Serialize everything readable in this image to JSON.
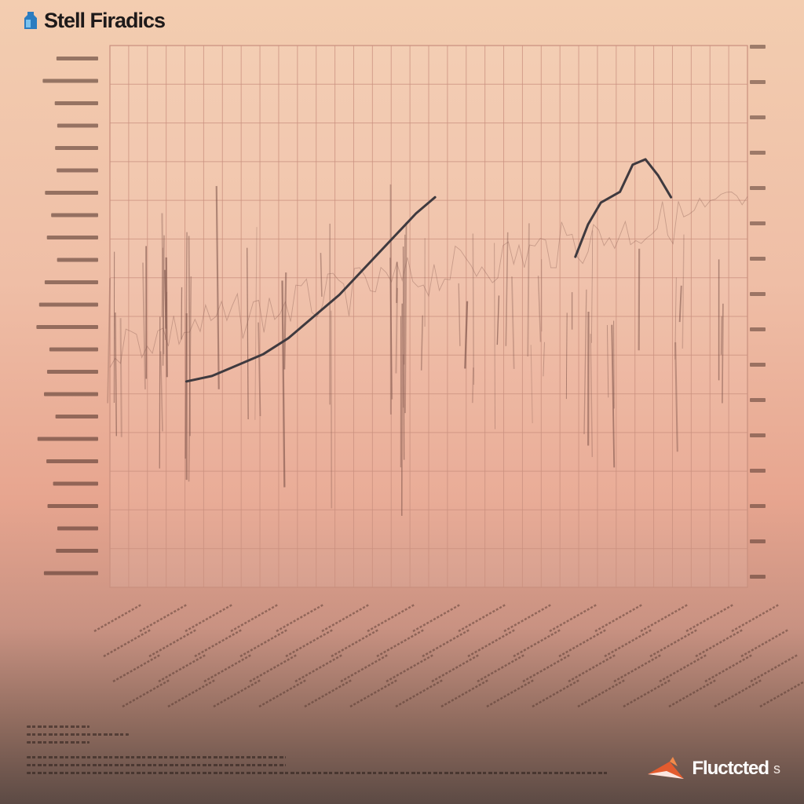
{
  "header": {
    "title": "Stell Firadics"
  },
  "footer": {
    "brand_name": "Fluctcted",
    "brand_suffix": "s"
  },
  "icons": {
    "header_logo": "bottle-logo-icon",
    "footer_logo": "paper-plane-logo-icon"
  },
  "colors": {
    "background_top": "#f3cdb0",
    "background_bottom": "#5c4a44",
    "grid_line": "#c98f7e",
    "trend_line": "#3f3a3f",
    "noise_line": "#7a5148",
    "title": "#1e1a1a"
  },
  "chart_data": {
    "type": "line",
    "title": "Stell Firadics",
    "xlabel": "",
    "ylabel": "",
    "xlim": [
      0,
      100
    ],
    "ylim": [
      0,
      100
    ],
    "grid": true,
    "x_gridlines": 34,
    "y_gridlines": 14,
    "series": [
      {
        "x": [
          12,
          16,
          20,
          24,
          28,
          32,
          36,
          40,
          44,
          48,
          51
        ],
        "y": [
          38,
          39,
          41,
          43,
          46,
          50,
          54,
          59,
          64,
          69,
          72
        ]
      },
      {
        "x": [
          73,
          75,
          77,
          80,
          82,
          84,
          86,
          88
        ],
        "y": [
          61,
          67,
          71,
          73,
          78,
          79,
          76,
          72
        ]
      }
    ]
  }
}
